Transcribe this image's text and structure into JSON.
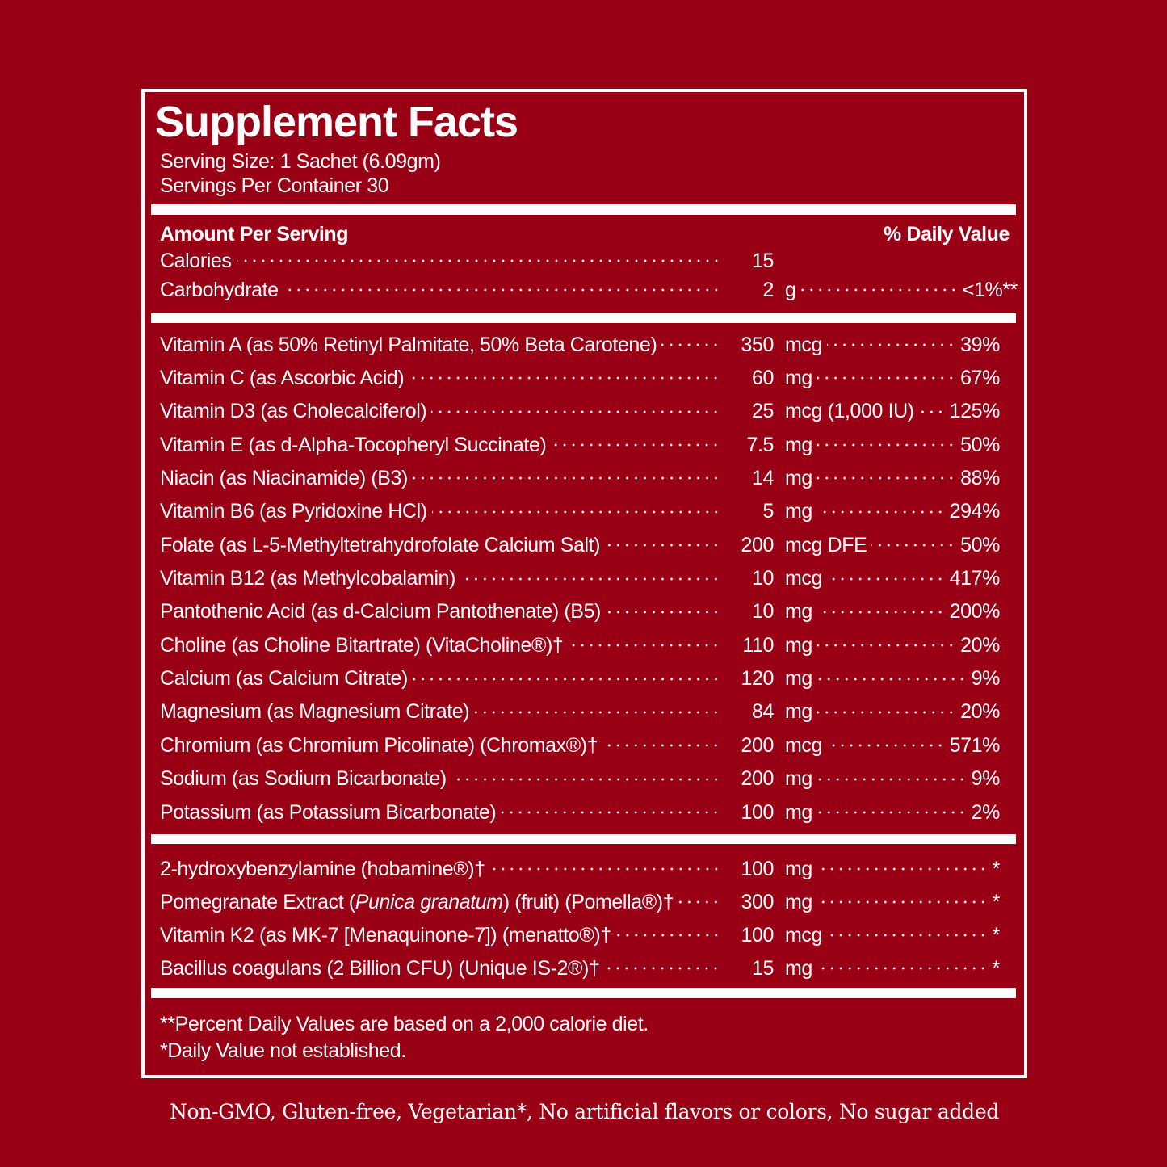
{
  "title": "Supplement Facts",
  "serving_size": "Serving Size: 1 Sachet (6.09gm)",
  "servings_per_container": "Servings Per Container 30",
  "header": {
    "amount": "Amount Per Serving",
    "daily_value": "% Daily Value"
  },
  "basic_rows": [
    {
      "name": "Calories",
      "amount": "15"
    },
    {
      "name": "Carbohydrate",
      "amount": "2",
      "unit": "g",
      "dv": "<1%**"
    }
  ],
  "nutrient_rows": [
    {
      "name": "Vitamin A (as 50% Retinyl Palmitate, 50% Beta Carotene)",
      "amount": "350",
      "unit": "mcg",
      "dv": "39%"
    },
    {
      "name": "Vitamin C (as Ascorbic Acid)",
      "amount": "60",
      "unit": "mg",
      "dv": "67%"
    },
    {
      "name": "Vitamin D3 (as Cholecalciferol)",
      "amount": "25",
      "unit": "mcg (1,000 IU)",
      "dv": "125%"
    },
    {
      "name": "Vitamin E (as d-Alpha-Tocopheryl Succinate)",
      "amount": "7.5",
      "unit": "mg",
      "dv": "50%"
    },
    {
      "name": "Niacin (as Niacinamide) (B3)",
      "amount": "14",
      "unit": "mg",
      "dv": "88%"
    },
    {
      "name": "Vitamin B6 (as Pyridoxine HCl)",
      "amount": "5",
      "unit": "mg",
      "dv": "294%"
    },
    {
      "name": "Folate (as L-5-Methyltetrahydrofolate Calcium Salt)",
      "amount": "200",
      "unit": "mcg DFE",
      "dv": "50%"
    },
    {
      "name": "Vitamin B12 (as Methylcobalamin)",
      "amount": "10",
      "unit": "mcg",
      "dv": "417%"
    },
    {
      "name": "Pantothenic Acid (as d-Calcium Pantothenate) (B5)",
      "amount": "10",
      "unit": "mg",
      "dv": "200%"
    },
    {
      "name": "Choline (as Choline Bitartrate) (VitaCholine®)†",
      "amount": "110",
      "unit": "mg",
      "dv": "20%"
    },
    {
      "name": "Calcium (as Calcium Citrate)",
      "amount": "120",
      "unit": "mg",
      "dv": "9%"
    },
    {
      "name": "Magnesium (as Magnesium Citrate)",
      "amount": "84",
      "unit": "mg",
      "dv": "20%"
    },
    {
      "name": "Chromium (as Chromium Picolinate) (Chromax®)†",
      "amount": "200",
      "unit": "mcg",
      "dv": "571%"
    },
    {
      "name": "Sodium (as Sodium Bicarbonate)",
      "amount": "200",
      "unit": "mg",
      "dv": "9%"
    },
    {
      "name": "Potassium (as Potassium Bicarbonate)",
      "amount": "100",
      "unit": "mg",
      "dv": "2%"
    }
  ],
  "other_rows": [
    {
      "name": "2-hydroxybenzylamine (hobamine®)†",
      "amount": "100",
      "unit": "mg",
      "dv": "*"
    },
    {
      "name": [
        "Pomegranate Extract (",
        "Punica granatum",
        ") (fruit) (Pomella®)†"
      ],
      "amount": "300",
      "unit": "mg",
      "dv": "*"
    },
    {
      "name": "Vitamin K2 (as MK-7 [Menaquinone-7]) (menatto®)†",
      "amount": "100",
      "unit": "mcg",
      "dv": "*"
    },
    {
      "name": "Bacillus coagulans (2 Billion CFU) (Unique IS-2®)†",
      "amount": "15",
      "unit": "mg",
      "dv": "*"
    }
  ],
  "footnotes": [
    "**Percent Daily Values are based on a 2,000 calorie diet.",
    "*Daily Value not established."
  ],
  "tagline": "Non-GMO, Gluten-free, Vegetarian*, No artificial flavors or colors, No sugar added"
}
